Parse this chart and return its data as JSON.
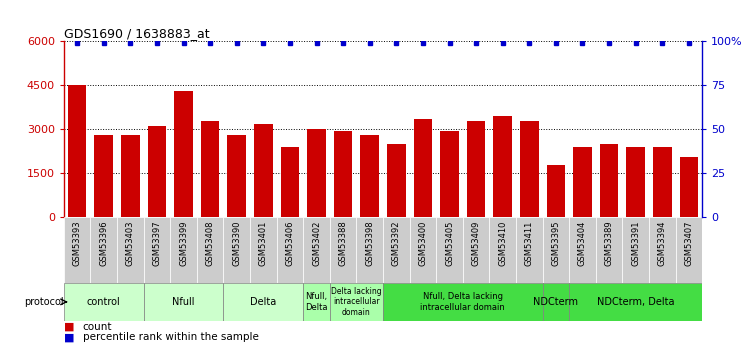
{
  "title": "GDS1690 / 1638883_at",
  "samples": [
    "GSM53393",
    "GSM53396",
    "GSM53403",
    "GSM53397",
    "GSM53399",
    "GSM53408",
    "GSM53390",
    "GSM53401",
    "GSM53406",
    "GSM53402",
    "GSM53388",
    "GSM53398",
    "GSM53392",
    "GSM53400",
    "GSM53405",
    "GSM53409",
    "GSM53410",
    "GSM53411",
    "GSM53395",
    "GSM53404",
    "GSM53389",
    "GSM53391",
    "GSM53394",
    "GSM53407"
  ],
  "counts": [
    4500,
    2800,
    2800,
    3100,
    4300,
    3300,
    2800,
    3200,
    2400,
    3000,
    2950,
    2800,
    2500,
    3350,
    2950,
    3300,
    3450,
    3300,
    1800,
    2400,
    2500,
    2400,
    2400,
    2050
  ],
  "percentiles": [
    99,
    99,
    99,
    99,
    99,
    99,
    99,
    99,
    99,
    99,
    99,
    99,
    99,
    99,
    99,
    99,
    99,
    99,
    99,
    99,
    99,
    99,
    99,
    99
  ],
  "bar_color": "#cc0000",
  "dot_color": "#0000cc",
  "ylim_left": [
    0,
    6000
  ],
  "ylim_right": [
    0,
    100
  ],
  "yticks_left": [
    0,
    1500,
    3000,
    4500,
    6000
  ],
  "yticks_right": [
    0,
    25,
    50,
    75,
    100
  ],
  "yticklabels_right": [
    "0",
    "25",
    "50",
    "75",
    "100%"
  ],
  "groups": [
    {
      "label": "control",
      "start": 0,
      "end": 3,
      "color": "#ccffcc"
    },
    {
      "label": "Nfull",
      "start": 3,
      "end": 6,
      "color": "#ccffcc"
    },
    {
      "label": "Delta",
      "start": 6,
      "end": 9,
      "color": "#ccffcc"
    },
    {
      "label": "Nfull,\nDelta",
      "start": 9,
      "end": 10,
      "color": "#aaffaa"
    },
    {
      "label": "Delta lacking\nintracellular\ndomain",
      "start": 10,
      "end": 12,
      "color": "#aaffaa"
    },
    {
      "label": "Nfull, Delta lacking\nintracellular domain",
      "start": 12,
      "end": 18,
      "color": "#44dd44"
    },
    {
      "label": "NDCterm",
      "start": 18,
      "end": 19,
      "color": "#44dd44"
    },
    {
      "label": "NDCterm, Delta",
      "start": 19,
      "end": 24,
      "color": "#44dd44"
    }
  ],
  "protocol_label": "protocol",
  "legend_count": "count",
  "legend_pct": "percentile rank within the sample",
  "background_color": "#ffffff",
  "tick_bg_color": "#cccccc"
}
